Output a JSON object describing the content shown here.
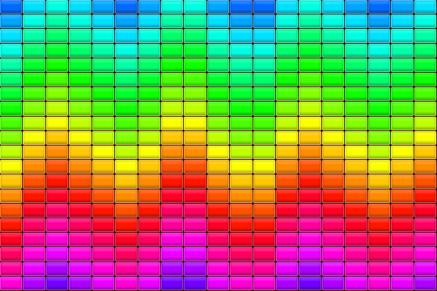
{
  "image": {
    "subject": "rainbow-tile-mosaic",
    "grid": {
      "columns": 19,
      "rows": 20
    },
    "hue_top": 215,
    "hue_step_per_row": 14,
    "column_row_offsets": [
      0,
      2,
      3,
      2,
      1,
      0,
      1,
      3,
      3,
      1,
      0,
      0,
      2,
      3,
      2,
      1,
      0,
      1,
      2
    ],
    "saturation": 100,
    "lightness": 50
  }
}
